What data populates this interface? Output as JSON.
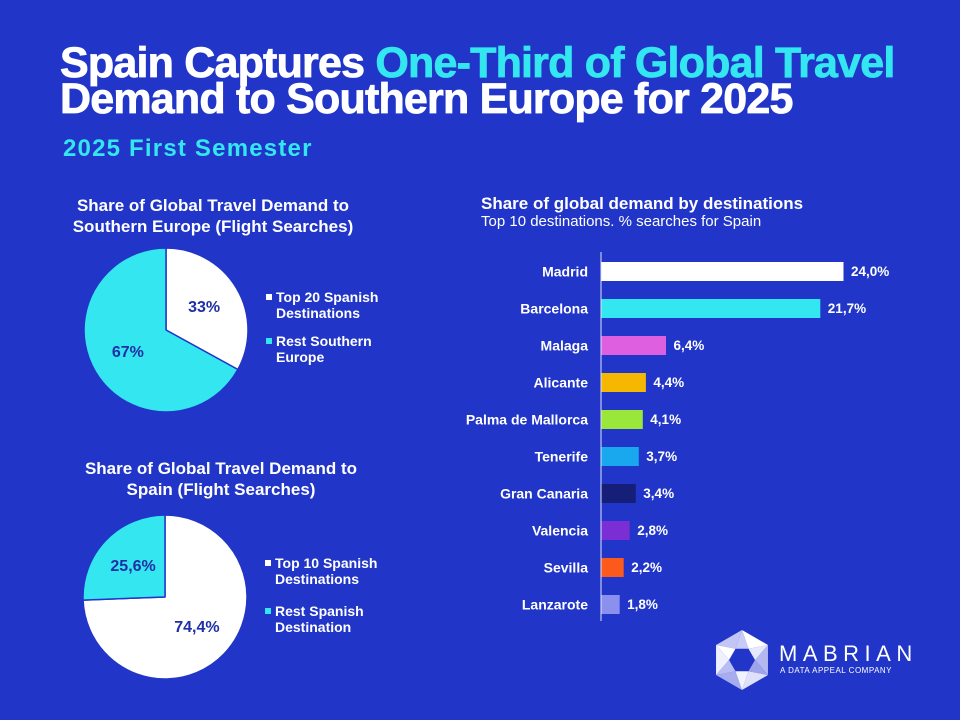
{
  "headline": {
    "lead": "Spain Captures ",
    "highlight": "One-Third of Global Travel",
    "tail": "Demand to Southern Europe for 2025"
  },
  "subtitle": "2025 First Semester",
  "colors": {
    "background": "#2136c8",
    "accent": "#33e6ef",
    "text": "#ffffff",
    "pie_label": "#1f2fa6",
    "axis": "#dfe2fb"
  },
  "chart_data": [
    {
      "type": "pie",
      "title": "Share of Global Travel Demand to Southern Europe (Flight Searches)",
      "legend": "right",
      "slices": [
        {
          "label": "Top 20 Spanish Destinations",
          "value": 33,
          "value_label": "33%",
          "color": "#ffffff"
        },
        {
          "label": "Rest Southern Europe",
          "value": 67,
          "value_label": "67%",
          "color": "#33e6ef"
        }
      ]
    },
    {
      "type": "pie",
      "title": "Share of Global Travel Demand to Spain (Flight Searches)",
      "legend": "right",
      "slices": [
        {
          "label": "Top 10 Spanish Destinations",
          "value": 74.4,
          "value_label": "74,4%",
          "color": "#ffffff"
        },
        {
          "label": "Rest Spanish Destination",
          "value": 25.6,
          "value_label": "25,6%",
          "color": "#33e6ef"
        }
      ]
    },
    {
      "type": "bar",
      "orientation": "horizontal",
      "title": "Share of global demand by destinations",
      "subtitle": "Top 10 destinations. % searches for Spain",
      "grid": false,
      "categories": [
        "Madrid",
        "Barcelona",
        "Malaga",
        "Alicante",
        "Palma de Mallorca",
        "Tenerife",
        "Gran Canaria",
        "Valencia",
        "Sevilla",
        "Lanzarote"
      ],
      "values": [
        24.0,
        21.7,
        6.4,
        4.4,
        4.1,
        3.7,
        3.4,
        2.8,
        2.2,
        1.8
      ],
      "value_labels": [
        "24,0%",
        "21,7%",
        "6,4%",
        "4,4%",
        "4,1%",
        "3,7%",
        "3,4%",
        "2,8%",
        "2,2%",
        "1,8%"
      ],
      "colors": [
        "#ffffff",
        "#33e6ef",
        "#de5fe0",
        "#f5b700",
        "#9be63a",
        "#19a7ee",
        "#161f78",
        "#7a2ed4",
        "#fb5a1c",
        "#8b90ee"
      ]
    }
  ],
  "brand": {
    "name": "MABRIAN",
    "tagline": "A DATA APPEAL COMPANY",
    "logo_icon": "hexagon-logo-icon"
  }
}
